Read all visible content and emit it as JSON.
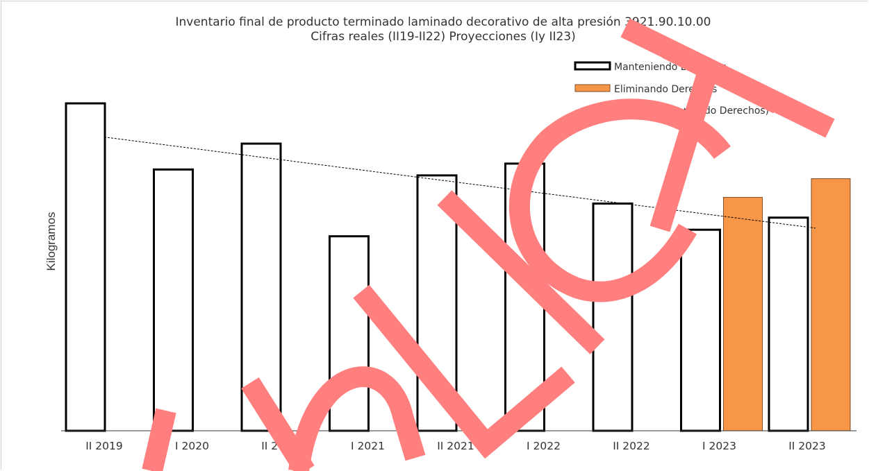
{
  "chart_data": {
    "type": "bar",
    "title": "Inventario final de producto terminado laminado decorativo de alta presión 3921.90.10.00",
    "subtitle": "Cifras reales (II19-II22) Proyecciones (Iy II23)",
    "ylabel": "Kilogramos",
    "xlabel": "",
    "y_tick_labels_shown": false,
    "ylim": [
      0,
      100
    ],
    "grid": false,
    "legend_position": "top-right",
    "categories": [
      "II 2019",
      "I 2020",
      "II 2020",
      "I 2021",
      "II 2021",
      "I 2022",
      "II 2022",
      "I 2023",
      "II 2023"
    ],
    "series": [
      {
        "name": "Manteniendo Derechos",
        "fill": "#ffffff",
        "stroke": "#000000",
        "values": [
          100,
          79.8,
          87.7,
          59.4,
          78.0,
          81.6,
          69.4,
          61.4,
          65.1
        ]
      },
      {
        "name": "Eliminando Derechos",
        "fill": "#f79646",
        "stroke": "#7f4f2a",
        "values": [
          null,
          null,
          null,
          null,
          null,
          null,
          null,
          71.3,
          77.0
        ]
      }
    ],
    "trendline": {
      "name": "Lineal ( Manteniendo Derechos)",
      "style": "dotted",
      "color": "#000000",
      "start_value": 89.7,
      "end_value": 61.9
    }
  },
  "watermark": {
    "text": "PUBLICA",
    "color": "#ff7f7f"
  }
}
